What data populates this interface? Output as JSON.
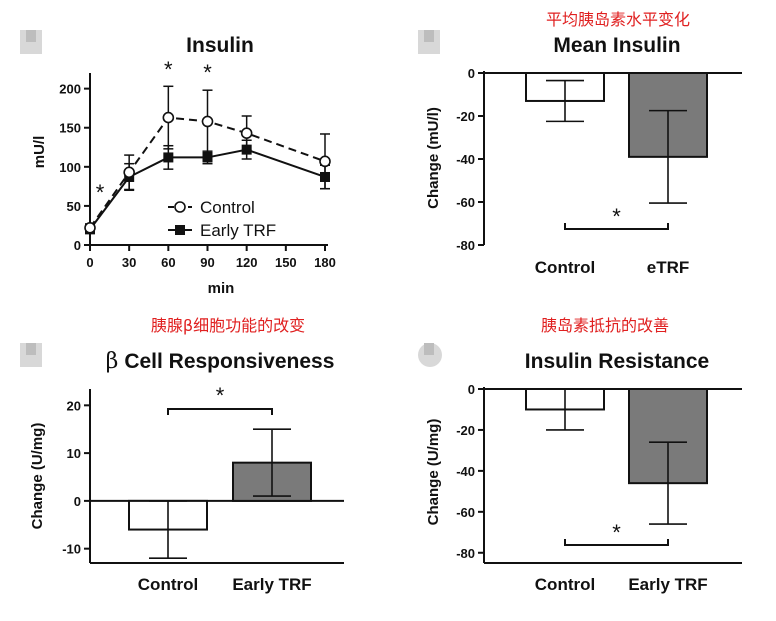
{
  "chart_data": [
    {
      "type": "line",
      "title": "Insulin",
      "xlabel": "min",
      "ylabel": "mU/l",
      "x": [
        0,
        30,
        60,
        90,
        120,
        180
      ],
      "xticks": [
        "0",
        "30",
        "60",
        "90",
        "120",
        "150",
        "180"
      ],
      "yticks": [
        "0",
        "50",
        "100",
        "150",
        "200"
      ],
      "ylim": [
        0,
        220
      ],
      "series": [
        {
          "name": "Control",
          "values": [
            22,
            93,
            163,
            158,
            143,
            107
          ],
          "err": [
            5,
            22,
            40,
            40,
            22,
            35
          ]
        },
        {
          "name": "Early TRF",
          "values": [
            20,
            87,
            112,
            112,
            122,
            87
          ],
          "err": [
            5,
            17,
            15,
            8,
            12,
            15
          ]
        }
      ],
      "significance": [
        "*",
        "*",
        "*"
      ]
    },
    {
      "type": "bar",
      "annotation_cn": "平均胰岛素水平变化",
      "title": "Mean Insulin",
      "ylabel": "Change (mU/l)",
      "categories": [
        "Control",
        "eTRF"
      ],
      "values": [
        -13,
        -39
      ],
      "err": [
        9.5,
        21.5
      ],
      "ylim": [
        -80,
        0
      ],
      "yticks": [
        "0",
        "-20",
        "-40",
        "-60",
        "-80"
      ],
      "significance": "*"
    },
    {
      "type": "bar",
      "annotation_cn": "胰腺β细胞功能的改变",
      "title_symbol": "β",
      "title": "Cell Responsiveness",
      "ylabel": "Change (U/mg)",
      "categories": [
        "Control",
        "Early TRF"
      ],
      "values": [
        -6,
        8
      ],
      "err": [
        6,
        7
      ],
      "ylim": [
        -13,
        23
      ],
      "yticks": [
        "20",
        "10",
        "0",
        "-10"
      ],
      "significance": "*"
    },
    {
      "type": "bar",
      "annotation_cn": "胰岛素抵抗的改善",
      "title": "Insulin Resistance",
      "ylabel": "Change (U/mg)",
      "categories": [
        "Control",
        "Early TRF"
      ],
      "values": [
        -10,
        -46
      ],
      "err": [
        10,
        20
      ],
      "ylim": [
        -85,
        0
      ],
      "yticks": [
        "0",
        "-20",
        "-40",
        "-60",
        "-80"
      ],
      "significance": "*"
    }
  ]
}
